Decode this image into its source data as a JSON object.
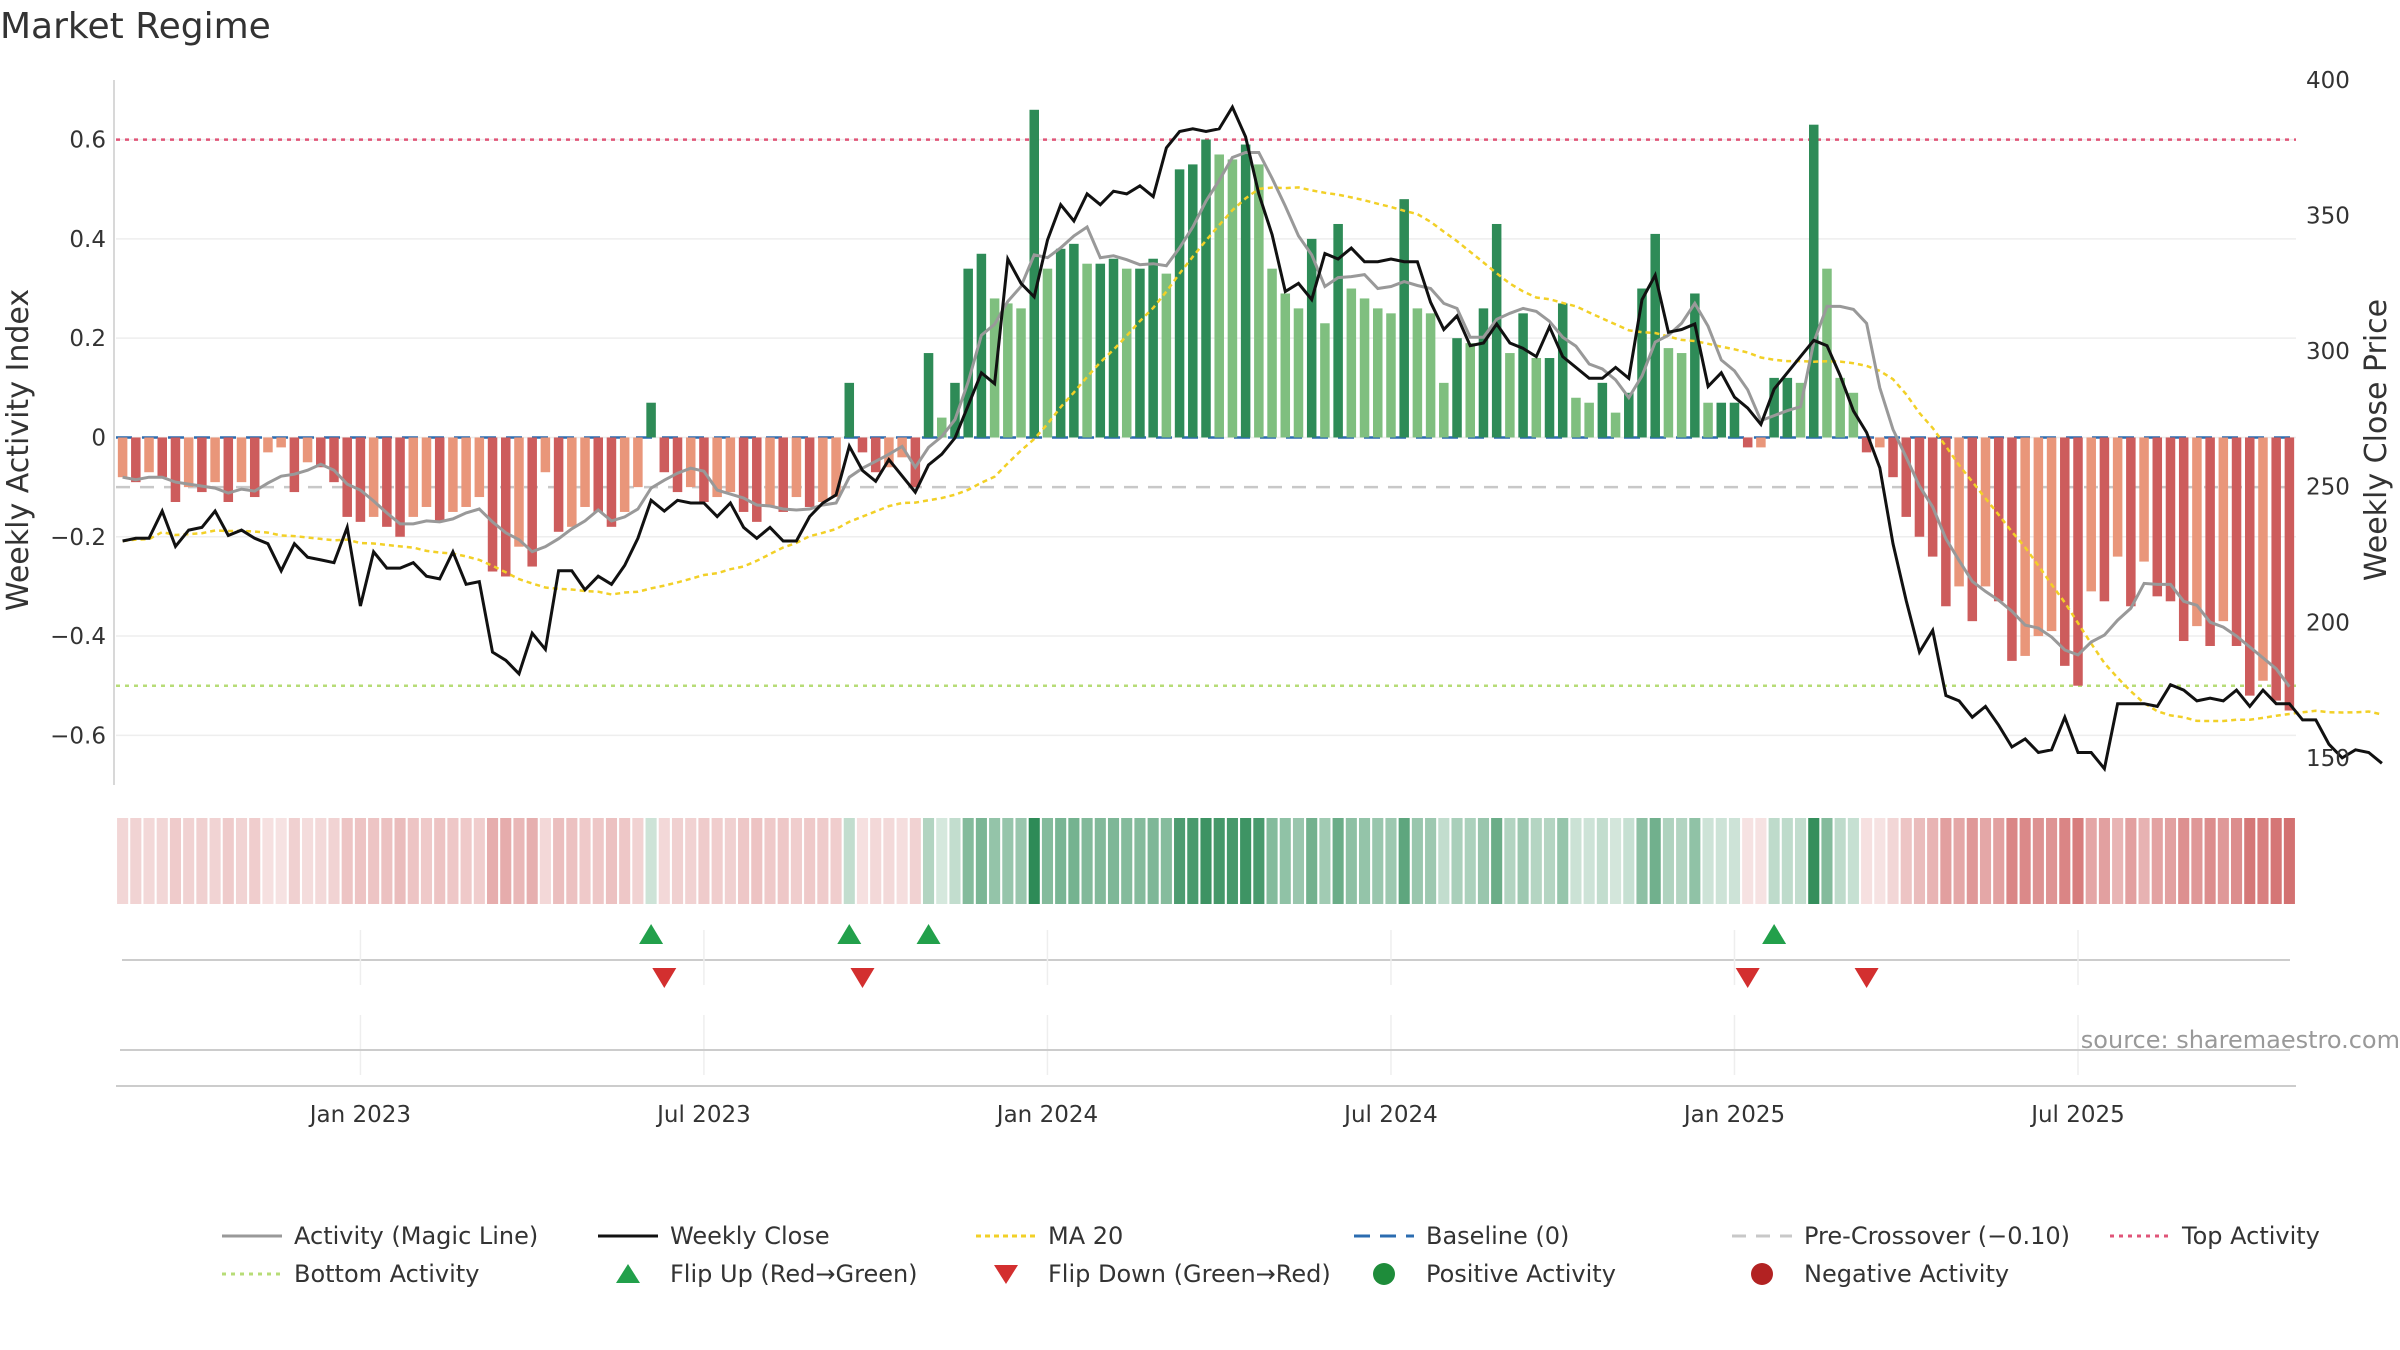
{
  "title": "Market Regime",
  "source": "source: sharemaestro.com",
  "chart_data": {
    "type": "bar",
    "title": "Market Regime",
    "ylabel_left": "Weekly Activity Index",
    "ylabel_right": "Weekly Close Price",
    "y_left_ticks": [
      "0.6",
      "0.4",
      "0.2",
      "0",
      "−0.2",
      "−0.4",
      "−0.6"
    ],
    "y_left_tick_values": [
      0.6,
      0.4,
      0.2,
      0,
      -0.2,
      -0.4,
      -0.6
    ],
    "y_right_ticks": [
      "400",
      "350",
      "300",
      "250",
      "200",
      "150"
    ],
    "y_right_tick_values": [
      400,
      350,
      300,
      250,
      200,
      150
    ],
    "y_left_range": [
      -0.7,
      0.72
    ],
    "y_right_range": [
      140,
      400
    ],
    "x_ticks": [
      "Jan 2023",
      "Jul 2023",
      "Jan 2024",
      "Jul 2024",
      "Jan 2025",
      "Jul 2025"
    ],
    "x_tick_week_index": [
      18,
      44,
      70,
      96,
      122,
      148
    ],
    "reference_lines": {
      "top_activity": 0.6,
      "bottom_activity": -0.5,
      "baseline": 0,
      "pre_crossover": -0.1
    },
    "activity_index": [
      -0.08,
      -0.09,
      -0.07,
      -0.08,
      -0.13,
      -0.1,
      -0.11,
      -0.09,
      -0.13,
      -0.09,
      -0.12,
      -0.03,
      -0.02,
      -0.11,
      -0.05,
      -0.06,
      -0.09,
      -0.16,
      -0.17,
      -0.16,
      -0.18,
      -0.2,
      -0.16,
      -0.14,
      -0.17,
      -0.15,
      -0.14,
      -0.12,
      -0.27,
      -0.28,
      -0.22,
      -0.26,
      -0.07,
      -0.19,
      -0.18,
      -0.14,
      -0.15,
      -0.18,
      -0.15,
      -0.1,
      0.07,
      -0.07,
      -0.11,
      -0.1,
      -0.13,
      -0.12,
      -0.11,
      -0.15,
      -0.17,
      -0.14,
      -0.15,
      -0.12,
      -0.14,
      -0.13,
      -0.12,
      0.11,
      -0.03,
      -0.07,
      -0.06,
      -0.04,
      -0.1,
      0.17,
      0.04,
      0.11,
      0.34,
      0.37,
      0.28,
      0.27,
      0.26,
      0.66,
      0.34,
      0.38,
      0.39,
      0.35,
      0.35,
      0.36,
      0.34,
      0.34,
      0.36,
      0.33,
      0.54,
      0.55,
      0.6,
      0.57,
      0.56,
      0.59,
      0.55,
      0.34,
      0.29,
      0.26,
      0.4,
      0.23,
      0.43,
      0.3,
      0.28,
      0.26,
      0.25,
      0.48,
      0.26,
      0.25,
      0.11,
      0.2,
      0.19,
      0.26,
      0.43,
      0.17,
      0.25,
      0.16,
      0.16,
      0.27,
      0.08,
      0.07,
      0.11,
      0.05,
      0.09,
      0.3,
      0.41,
      0.18,
      0.17,
      0.29,
      0.07,
      0.07,
      0.07,
      -0.02,
      -0.02,
      0.12,
      0.12,
      0.11,
      0.63,
      0.34,
      0.12,
      0.09,
      -0.03,
      -0.02,
      -0.08,
      -0.16,
      -0.2,
      -0.24,
      -0.34,
      -0.3,
      -0.37,
      -0.3,
      -0.33,
      -0.45,
      -0.44,
      -0.4,
      -0.39,
      -0.46,
      -0.5,
      -0.31,
      -0.33,
      -0.24,
      -0.34,
      -0.25,
      -0.32,
      -0.33,
      -0.41,
      -0.38,
      -0.42,
      -0.37,
      -0.42,
      -0.52,
      -0.49,
      -0.53,
      -0.55
    ],
    "weekly_close": [
      230,
      231,
      231,
      241,
      228,
      234,
      235,
      241,
      232,
      234,
      231,
      229,
      219,
      229,
      224,
      223,
      222,
      235,
      206,
      226,
      220,
      220,
      222,
      217,
      216,
      226,
      214,
      215,
      189,
      186,
      181,
      196,
      190,
      219,
      219,
      212,
      217,
      214,
      221,
      231,
      245,
      241,
      245,
      244,
      244,
      239,
      244,
      235,
      231,
      235,
      230,
      230,
      239,
      244,
      247,
      265,
      256,
      252,
      260,
      254,
      248,
      258,
      262,
      268,
      280,
      292,
      288,
      334,
      325,
      320,
      341,
      354,
      348,
      358,
      354,
      359,
      358,
      361,
      357,
      375,
      381,
      382,
      381,
      382,
      390,
      379,
      358,
      343,
      322,
      325,
      319,
      336,
      334,
      338,
      333,
      333,
      334,
      333,
      333,
      318,
      308,
      313,
      302,
      303,
      310,
      303,
      301,
      298,
      309,
      298,
      294,
      290,
      290,
      294,
      290,
      319,
      328,
      307,
      308,
      310,
      287,
      292,
      283,
      279,
      273,
      286,
      292,
      298,
      304,
      302,
      291,
      278,
      270,
      257,
      229,
      208,
      189,
      197,
      173,
      171,
      165,
      169,
      162,
      154,
      157,
      152,
      153,
      165,
      152,
      152,
      146,
      170,
      170,
      170,
      169,
      177,
      175,
      171,
      172,
      171,
      175,
      169,
      175,
      170,
      170,
      164,
      164,
      155,
      150,
      153,
      152,
      148
    ]
  },
  "legend": [
    {
      "label": "Activity (Magic Line)"
    },
    {
      "label": "Weekly Close"
    },
    {
      "label": "MA 20"
    },
    {
      "label": "Baseline (0)"
    },
    {
      "label": "Pre-Crossover (−0.10)"
    },
    {
      "label": "Top Activity"
    },
    {
      "label": "Bottom Activity"
    },
    {
      "label": "Flip Up (Red→Green)"
    },
    {
      "label": "Flip Down (Green→Red)"
    },
    {
      "label": "Positive Activity"
    },
    {
      "label": "Negative Activity"
    }
  ],
  "colors": {
    "strong_green": "#2e8b57",
    "light_green": "#7fbf7f",
    "strong_red": "#cd5c5c",
    "light_red": "#e9967a",
    "magic_line": "#999999",
    "weekly_close": "#111111",
    "ma20": "#f2d027",
    "baseline": "#2b6cb0",
    "pre_crossover": "#c8c8c8",
    "top_activity": "#e05578",
    "bottom_activity": "#b7dc77",
    "flip_up": "#22a04b",
    "flip_down": "#d32f2f",
    "positive_dot": "#1e8c3a",
    "negative_dot": "#b22222",
    "source_text": "#999999"
  }
}
